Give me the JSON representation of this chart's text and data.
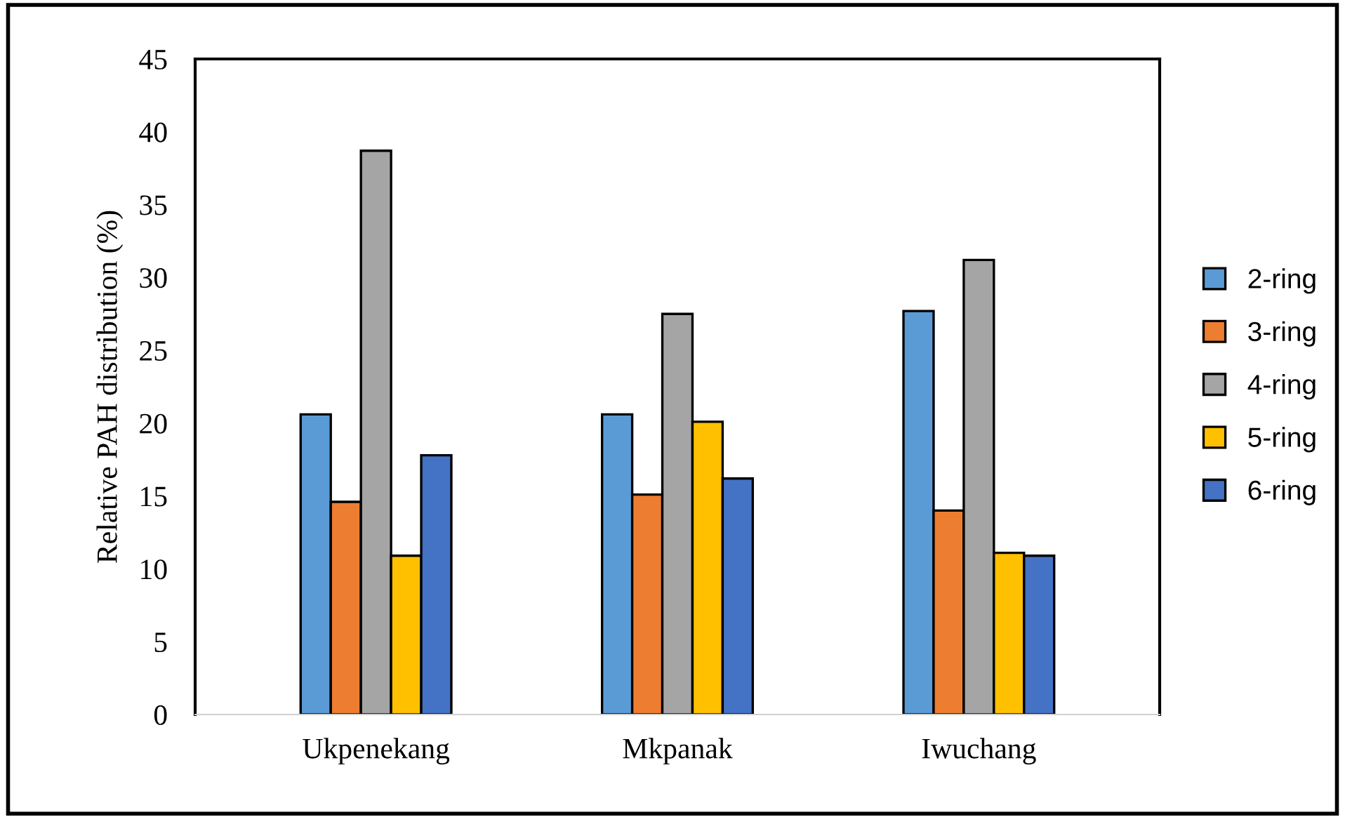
{
  "chart_data": {
    "type": "bar",
    "ylabel": "Relative PAH distribution (%)",
    "categories": [
      "Ukpenekang",
      "Mkpanak",
      "Iwuchang"
    ],
    "series": [
      {
        "name": "2-ring",
        "color": "#5b9bd5",
        "values": [
          20.6,
          20.6,
          27.7
        ]
      },
      {
        "name": "3-ring",
        "color": "#ed7d31",
        "values": [
          14.6,
          15.1,
          14.0
        ]
      },
      {
        "name": "4-ring",
        "color": "#a5a5a5",
        "values": [
          38.7,
          27.5,
          31.2
        ]
      },
      {
        "name": "5-ring",
        "color": "#ffc000",
        "values": [
          10.9,
          20.1,
          11.1
        ]
      },
      {
        "name": "6-ring",
        "color": "#4472c4",
        "values": [
          17.8,
          16.2,
          10.9
        ]
      }
    ],
    "ylim": [
      0,
      45
    ],
    "yticks": [
      0,
      5,
      10,
      15,
      20,
      25,
      30,
      35,
      40,
      45
    ],
    "grid": false,
    "legend": "right"
  }
}
